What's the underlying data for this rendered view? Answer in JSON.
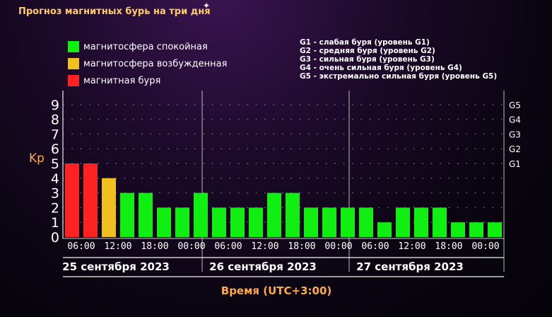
{
  "title": "Прогноз магнитных бурь на три дня",
  "legend": [
    {
      "label": "магнитосфера спокойная",
      "color": "#11ee11"
    },
    {
      "label": "магнитосфера возбужденная",
      "color": "#f0c020"
    },
    {
      "label": "магнитная буря",
      "color": "#ff2222"
    }
  ],
  "g_legend": [
    "G1 - слабая буря (уровень G1)",
    "G2 - средняя буря (уровень G2)",
    "G3 - сильная буря (уровень G3)",
    "G4 - очень сильная буря (уровень G4)",
    "G5 - экстремально сильная буря (уровень G5)"
  ],
  "colors": {
    "calm": "#11ee11",
    "excited": "#f0c020",
    "storm": "#ff2222",
    "axis_label": "#ffaa44"
  },
  "chart_data": {
    "type": "bar",
    "title": "Прогноз магнитных бурь на три дня",
    "ylabel": "Kp",
    "xlabel": "Время (UTC+3:00)",
    "ylim": [
      0,
      9
    ],
    "y_ticks": [
      0,
      1,
      2,
      3,
      4,
      5,
      6,
      7,
      8,
      9
    ],
    "g_ticks": [
      {
        "label": "G1",
        "kp": 5
      },
      {
        "label": "G2",
        "kp": 6
      },
      {
        "label": "G3",
        "kp": 7
      },
      {
        "label": "G4",
        "kp": 8
      },
      {
        "label": "G5",
        "kp": 9
      }
    ],
    "x_tick_labels": [
      "06:00",
      "12:00",
      "18:00",
      "00:00",
      "06:00",
      "12:00",
      "18:00",
      "00:00",
      "06:00",
      "12:00",
      "18:00",
      "00:00"
    ],
    "days": [
      "25 сентября 2023",
      "26 сентября 2023",
      "27 сентября 2023"
    ],
    "values": [
      5,
      5,
      4,
      3,
      3,
      2,
      2,
      3,
      2,
      2,
      2,
      3,
      3,
      2,
      2,
      2,
      2,
      1,
      2,
      2,
      2,
      1,
      1,
      1
    ],
    "grid": "dotted"
  }
}
